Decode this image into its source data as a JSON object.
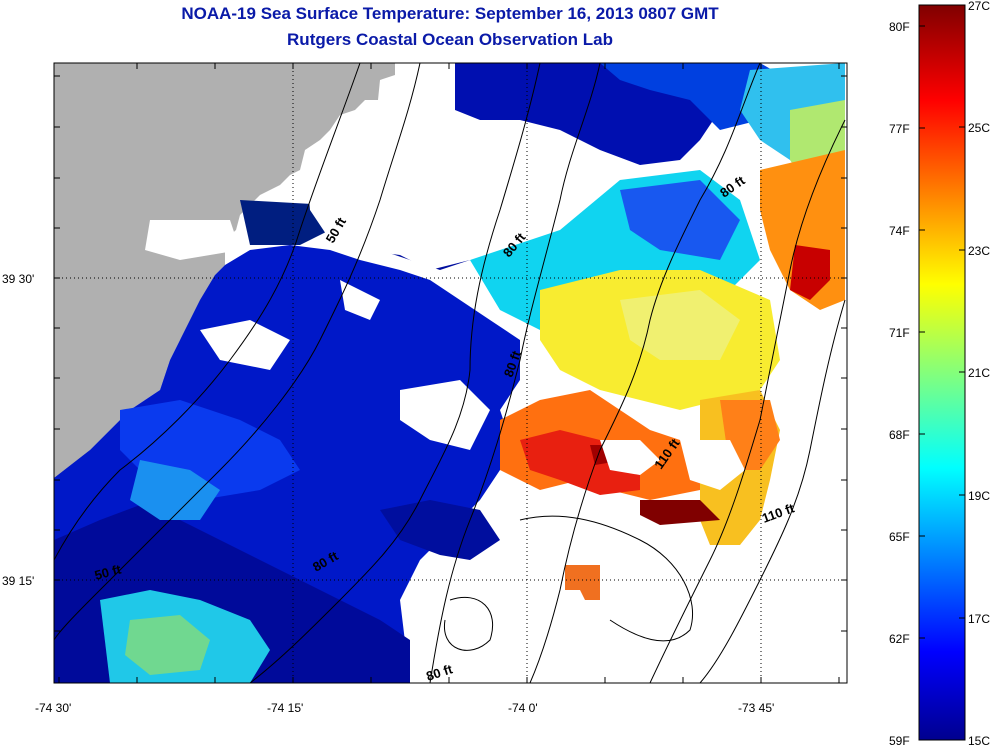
{
  "title": "NOAA-19 Sea Surface Temperature:  September 16, 2013 0807 GMT",
  "subtitle": "Rutgers Coastal Ocean Observation Lab",
  "map": {
    "lat_ticks": [
      "39 30'",
      "39 15'"
    ],
    "lon_ticks": [
      "-74 30'",
      "-74 15'",
      "-74 0'",
      "-73 45'"
    ],
    "contour_labels": [
      "50 ft",
      "80 ft",
      "80 ft",
      "80 ft",
      "80 ft",
      "110 ft",
      "110 ft",
      "50 ft",
      "80 ft"
    ],
    "land_color": "#b0b0b0",
    "no_data_color": "#ffffff"
  },
  "colorbar": {
    "celsius_labels": [
      "27C",
      "25C",
      "23C",
      "21C",
      "19C",
      "17C",
      "15C"
    ],
    "fahrenheit_labels": [
      "80F",
      "77F",
      "74F",
      "71F",
      "68F",
      "65F",
      "62F",
      "59F"
    ],
    "colors": [
      "#00008f",
      "#0000ff",
      "#00ffff",
      "#ffff00",
      "#ff0000",
      "#800000"
    ]
  }
}
